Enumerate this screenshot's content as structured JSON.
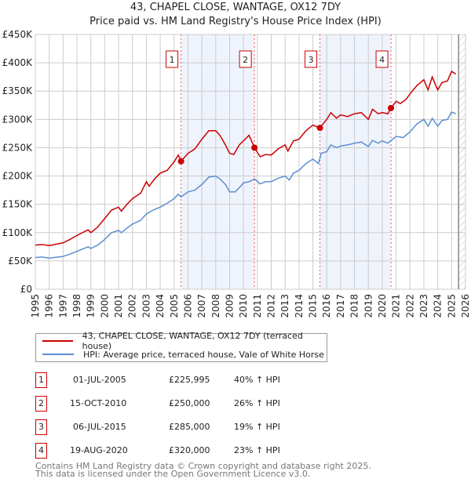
{
  "chart_data": {
    "type": "line",
    "title": "43, CHAPEL CLOSE, WANTAGE, OX12 7DY",
    "subtitle": "Price paid vs. HM Land Registry's House Price Index (HPI)",
    "xlim": [
      1995,
      2026
    ],
    "ylim": [
      0,
      450000
    ],
    "y_ticks": [
      "£0",
      "£50K",
      "£100K",
      "£150K",
      "£200K",
      "£250K",
      "£300K",
      "£350K",
      "£400K",
      "£450K"
    ],
    "x_ticks": [
      "1995",
      "1996",
      "1997",
      "1998",
      "1999",
      "2000",
      "2001",
      "2002",
      "2003",
      "2004",
      "2005",
      "2006",
      "2007",
      "2008",
      "2009",
      "2010",
      "2011",
      "2012",
      "2013",
      "2014",
      "2015",
      "2016",
      "2017",
      "2018",
      "2019",
      "2020",
      "2021",
      "2022",
      "2023",
      "2024",
      "2025",
      "2026"
    ],
    "colors": {
      "property": "#cc0000",
      "hpi": "#5b8fd0",
      "shade": "#eef3fc"
    },
    "series": [
      {
        "name": "43, CHAPEL CLOSE, WANTAGE, OX12 7DY (terraced house)",
        "x": [
          1995,
          1995.5,
          1996,
          1997,
          1997.5,
          1998,
          1998.8,
          1999,
          1999.5,
          2000,
          2000.5,
          2001,
          2001.2,
          2001.6,
          2002,
          2002.6,
          2003,
          2003.2,
          2003.6,
          2004,
          2004.5,
          2005,
          2005.3,
          2005.5,
          2006,
          2006.5,
          2007,
          2007.5,
          2008,
          2008.3,
          2008.7,
          2009,
          2009.3,
          2009.7,
          2010,
          2010.4,
          2010.8,
          2011.2,
          2011.6,
          2012,
          2012.5,
          2013,
          2013.2,
          2013.6,
          2014,
          2014.5,
          2015,
          2015.5,
          2016,
          2016.3,
          2016.7,
          2017,
          2017.5,
          2018,
          2018.5,
          2019,
          2019.3,
          2019.7,
          2020,
          2020.4,
          2020.63,
          2021,
          2021.3,
          2021.7,
          2022,
          2022.5,
          2023,
          2023.3,
          2023.6,
          2024,
          2024.3,
          2024.7,
          2025,
          2025.3
        ],
        "y": [
          78,
          79,
          77,
          82,
          88,
          95,
          105,
          100,
          110,
          125,
          140,
          145,
          138,
          150,
          160,
          170,
          190,
          182,
          195,
          205,
          210,
          225,
          237,
          226,
          240,
          248,
          265,
          280,
          280,
          272,
          255,
          240,
          238,
          255,
          262,
          272,
          250,
          234,
          238,
          237,
          248,
          255,
          244,
          262,
          265,
          280,
          290,
          285,
          300,
          312,
          302,
          308,
          305,
          310,
          312,
          300,
          318,
          310,
          312,
          310,
          320,
          332,
          328,
          335,
          345,
          360,
          370,
          352,
          375,
          352,
          365,
          368,
          385,
          380
        ]
      },
      {
        "name": "HPI: Average price, terraced house, Vale of White Horse",
        "x": [
          1995,
          1995.5,
          1996,
          1997,
          1997.5,
          1998,
          1998.8,
          1999,
          1999.5,
          2000,
          2000.5,
          2001,
          2001.2,
          2001.6,
          2002,
          2002.6,
          2003,
          2003.5,
          2004,
          2004.5,
          2005,
          2005.3,
          2005.5,
          2006,
          2006.5,
          2007,
          2007.5,
          2008,
          2008.3,
          2008.7,
          2009,
          2009.4,
          2009.8,
          2010,
          2010.4,
          2010.8,
          2011.2,
          2011.6,
          2012,
          2012.5,
          2013,
          2013.3,
          2013.6,
          2014,
          2014.5,
          2015,
          2015.4,
          2015.6,
          2016,
          2016.3,
          2016.7,
          2017,
          2017.5,
          2018,
          2018.5,
          2019,
          2019.3,
          2019.7,
          2020,
          2020.4,
          2020.6,
          2021,
          2021.5,
          2022,
          2022.5,
          2023,
          2023.3,
          2023.6,
          2024,
          2024.3,
          2024.7,
          2025,
          2025.3
        ],
        "y": [
          56,
          57,
          55,
          58,
          62,
          67,
          75,
          72,
          78,
          88,
          100,
          104,
          100,
          108,
          115,
          122,
          133,
          140,
          145,
          152,
          160,
          168,
          163,
          172,
          175,
          185,
          198,
          200,
          195,
          185,
          172,
          172,
          182,
          188,
          190,
          195,
          186,
          190,
          190,
          196,
          200,
          193,
          205,
          210,
          222,
          230,
          222,
          240,
          243,
          255,
          250,
          253,
          255,
          258,
          260,
          252,
          263,
          258,
          262,
          258,
          262,
          270,
          268,
          278,
          292,
          300,
          288,
          302,
          288,
          298,
          300,
          313,
          310
        ]
      }
    ],
    "sales": [
      {
        "label": "1",
        "x": 2005.5,
        "date": "01-JUL-2005",
        "price": 225995,
        "price_text": "£225,995",
        "hpi_text": "40% ↑ HPI"
      },
      {
        "label": "2",
        "x": 2010.79,
        "date": "15-OCT-2010",
        "price": 250000,
        "price_text": "£250,000",
        "hpi_text": "26% ↑ HPI"
      },
      {
        "label": "3",
        "x": 2015.51,
        "date": "06-JUL-2015",
        "price": 285000,
        "price_text": "£285,000",
        "hpi_text": "19% ↑ HPI"
      },
      {
        "label": "4",
        "x": 2020.63,
        "date": "19-AUG-2020",
        "price": 320000,
        "price_text": "£320,000",
        "hpi_text": "23% ↑ HPI"
      }
    ],
    "forecast_start": 2025.5,
    "y_units": "thousands GBP"
  },
  "footer": {
    "line1": "Contains HM Land Registry data © Crown copyright and database right 2025.",
    "line2": "This data is licensed under the Open Government Licence v3.0."
  }
}
